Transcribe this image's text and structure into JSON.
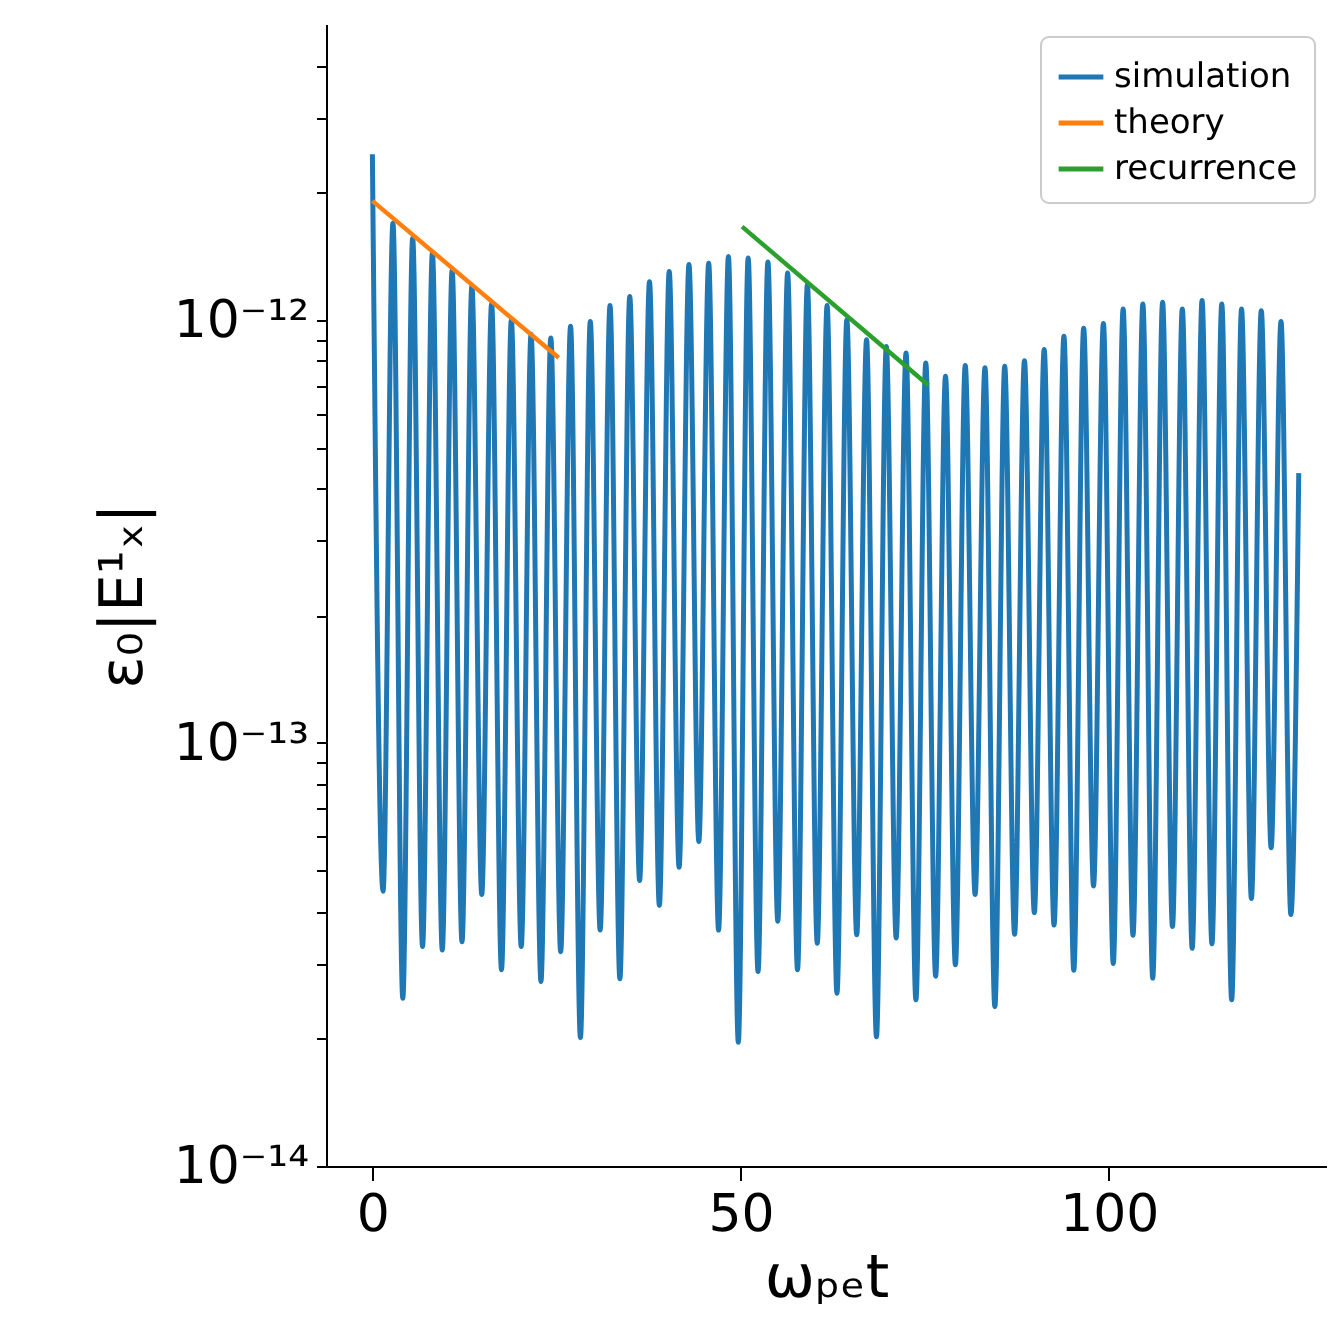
{
  "chart_data": {
    "type": "line",
    "xlabel": "ωₚₑt",
    "ylabel": "ε₀|E¹ₓ|",
    "log": "y",
    "grid": false,
    "legend": "top right",
    "marker": "none",
    "line_style": "solid",
    "xlim": [
      -6.3,
      129.5
    ],
    "xticks": [
      0,
      50,
      100
    ],
    "ylim": [
      1e-14,
      5e-12
    ],
    "yticks": [
      {
        "value": 1e-14,
        "label": "10⁻¹⁴"
      },
      {
        "value": 2e-14,
        "label": null
      },
      {
        "value": 3e-14,
        "label": null
      },
      {
        "value": 4e-14,
        "label": null
      },
      {
        "value": 5e-14,
        "label": null
      },
      {
        "value": 6e-14,
        "label": null
      },
      {
        "value": 7e-14,
        "label": null
      },
      {
        "value": 8e-14,
        "label": null
      },
      {
        "value": 9e-14,
        "label": null
      },
      {
        "value": 1e-13,
        "label": "10⁻¹³"
      },
      {
        "value": 2e-13,
        "label": null
      },
      {
        "value": 3e-13,
        "label": null
      },
      {
        "value": 4e-13,
        "label": null
      },
      {
        "value": 5e-13,
        "label": null
      },
      {
        "value": 6e-13,
        "label": null
      },
      {
        "value": 7e-13,
        "label": null
      },
      {
        "value": 8e-13,
        "label": null
      },
      {
        "value": 9e-13,
        "label": null
      },
      {
        "value": 1e-12,
        "label": "10⁻¹²"
      },
      {
        "value": 2e-12,
        "label": null
      },
      {
        "value": 3e-12,
        "label": null
      },
      {
        "value": 4e-12,
        "label": null
      }
    ],
    "series": [
      {
        "name": "simulation",
        "color": "#1f77b4",
        "x": [
          0,
          1.45,
          2.79,
          4.13,
          5.47,
          6.81,
          8.15,
          9.49,
          10.83,
          12.17,
          13.51,
          14.85,
          16.19,
          17.53,
          18.87,
          20.21,
          21.55,
          22.89,
          24.23,
          25.57,
          26.91,
          28.25,
          29.59,
          30.93,
          32.27,
          33.61,
          34.95,
          36.29,
          37.63,
          38.97,
          40.31,
          41.65,
          42.99,
          44.33,
          45.67,
          47.01,
          48.35,
          49.69,
          51.03,
          52.37,
          53.71,
          55.05,
          56.39,
          57.73,
          59.07,
          60.41,
          61.75,
          63.09,
          64.43,
          65.77,
          67.11,
          68.45,
          69.79,
          71.13,
          72.47,
          73.81,
          75.15,
          76.49,
          77.83,
          79.17,
          80.51,
          81.85,
          83.19,
          84.53,
          85.87,
          87.21,
          88.55,
          89.89,
          91.23,
          92.57,
          93.91,
          95.25,
          96.59,
          97.93,
          99.27,
          100.61,
          101.95,
          103.29,
          104.63,
          105.97,
          107.31,
          108.65,
          109.99,
          111.33,
          112.67,
          114.01,
          115.35,
          116.69,
          118.03,
          119.37,
          120.71,
          122.05,
          123.39,
          124.73,
          125.8
        ],
        "values": [
          2.46e-12,
          4.46e-14,
          1.69e-12,
          2.49e-14,
          1.56e-12,
          3.3e-14,
          1.44e-12,
          3.24e-14,
          1.31e-12,
          3.39e-14,
          1.2e-12,
          4.38e-14,
          1.09e-12,
          2.91e-14,
          1e-12,
          3.3e-14,
          9.24e-13,
          2.73e-14,
          9.06e-13,
          3.21e-14,
          9.65e-13,
          2.01e-14,
          9.9e-13,
          3.61e-14,
          1.08e-12,
          2.77e-14,
          1.135e-12,
          4.73e-14,
          1.23e-12,
          4.13e-14,
          1.3e-12,
          5.08e-14,
          1.35e-12,
          5.85e-14,
          1.36e-12,
          3.61e-14,
          1.41e-12,
          1.96e-14,
          1.4e-12,
          2.88e-14,
          1.37e-12,
          3.79e-14,
          1.29e-12,
          2.91e-14,
          1.21e-12,
          3.36e-14,
          1.08e-12,
          2.56e-14,
          1e-12,
          3.52e-14,
          8.97e-13,
          2.02e-14,
          8.65e-13,
          3.46e-14,
          8.34e-13,
          2.47e-14,
          7.9e-13,
          2.81e-14,
          7.35e-13,
          2.99e-14,
          7.8e-13,
          4.38e-14,
          7.7e-13,
          2.38e-14,
          7.76e-13,
          3.53e-14,
          8e-13,
          3.97e-14,
          8.5e-13,
          3.71e-14,
          9.14e-13,
          2.9e-14,
          9.55e-13,
          4.59e-14,
          9.8e-13,
          3.01e-14,
          1.06e-12,
          3.51e-14,
          1.09e-12,
          2.78e-14,
          1.1e-12,
          3.68e-14,
          1.06e-12,
          3.27e-14,
          1.11e-12,
          3.35e-14,
          1.09e-12,
          2.47e-14,
          1.06e-12,
          4.29e-14,
          1.05e-12,
          5.65e-14,
          9.9e-13,
          3.93e-14,
          4.34e-13
        ]
      },
      {
        "name": "theory",
        "color": "#ff7f0e",
        "x": [
          0,
          25.3
        ],
        "values": [
          1.91e-12,
          8.13e-13
        ]
      },
      {
        "name": "recurrence",
        "color": "#2ca02c",
        "x": [
          50.2,
          75.5
        ],
        "values": [
          1.66e-12,
          7e-13
        ]
      }
    ]
  }
}
